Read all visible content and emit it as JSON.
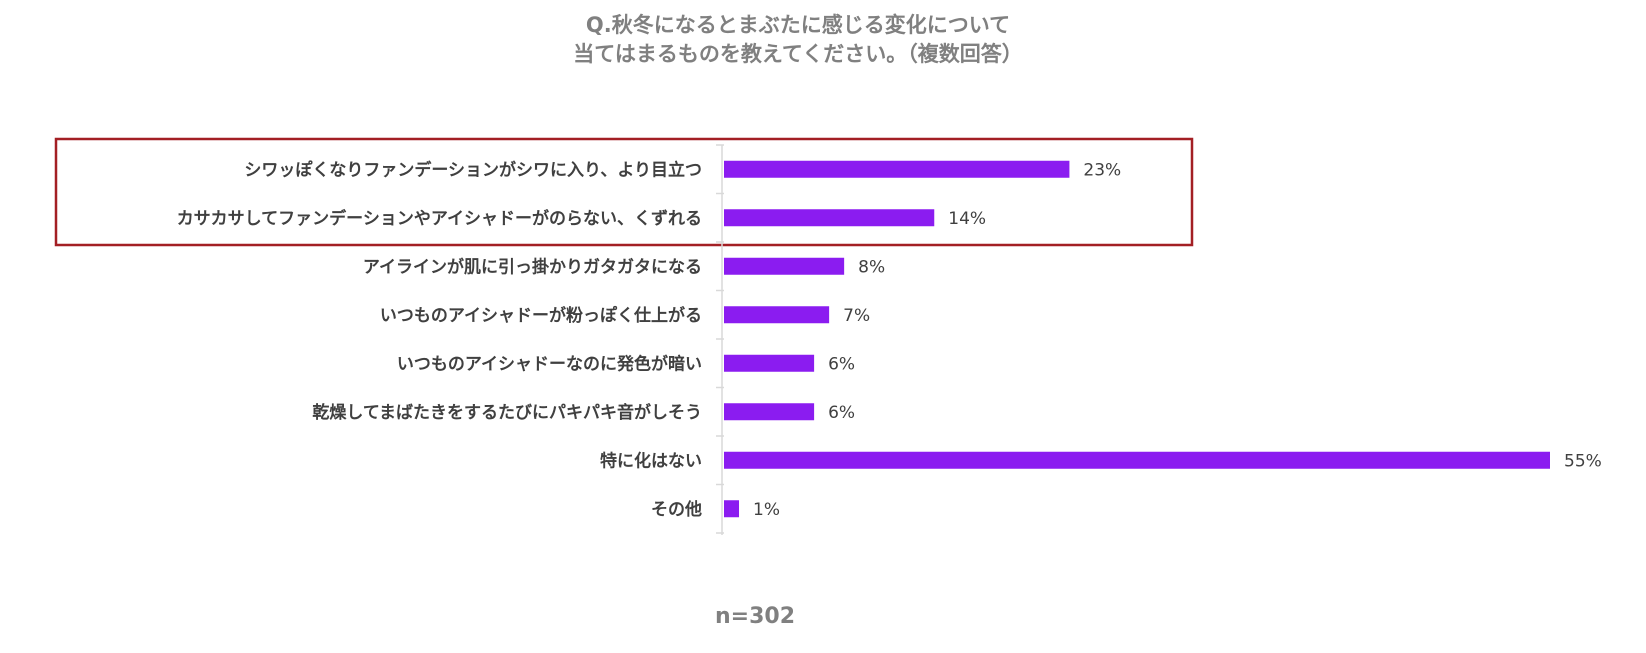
{
  "chart_data": {
    "type": "bar",
    "orientation": "horizontal",
    "title_lines": [
      "Q.秋冬になるとまぶたに感じる変化について",
      "当てはまるものを教えてください。（複数回答）"
    ],
    "categories": [
      "シワッぽくなりファンデーションがシワに入り、より目立つ",
      "カサカサしてファンデーションやアイシャドーがのらない、くずれる",
      "アイラインが肌に引っ掛かりガタガタになる",
      "いつものアイシャドーが粉っぽく仕上がる",
      "いつものアイシャドーなのに発色が暗い",
      "乾燥してまばたきをするたびにパキパキ音がしそう",
      "特に化はない",
      "その他"
    ],
    "values": [
      23,
      14,
      8,
      7,
      6,
      6,
      55,
      1
    ],
    "value_labels": [
      "23%",
      "14%",
      "8%",
      "7%",
      "6%",
      "6%",
      "55%",
      "1%"
    ],
    "unit": "%",
    "xlim": [
      0,
      55
    ],
    "highlighted_categories": [
      0,
      1
    ],
    "sample_size": "n=302",
    "colors": {
      "bar": "#8B1CF0",
      "highlight_box": "#A31F24",
      "axis": "#D9D9D9"
    },
    "grid": false,
    "legend": "none"
  }
}
